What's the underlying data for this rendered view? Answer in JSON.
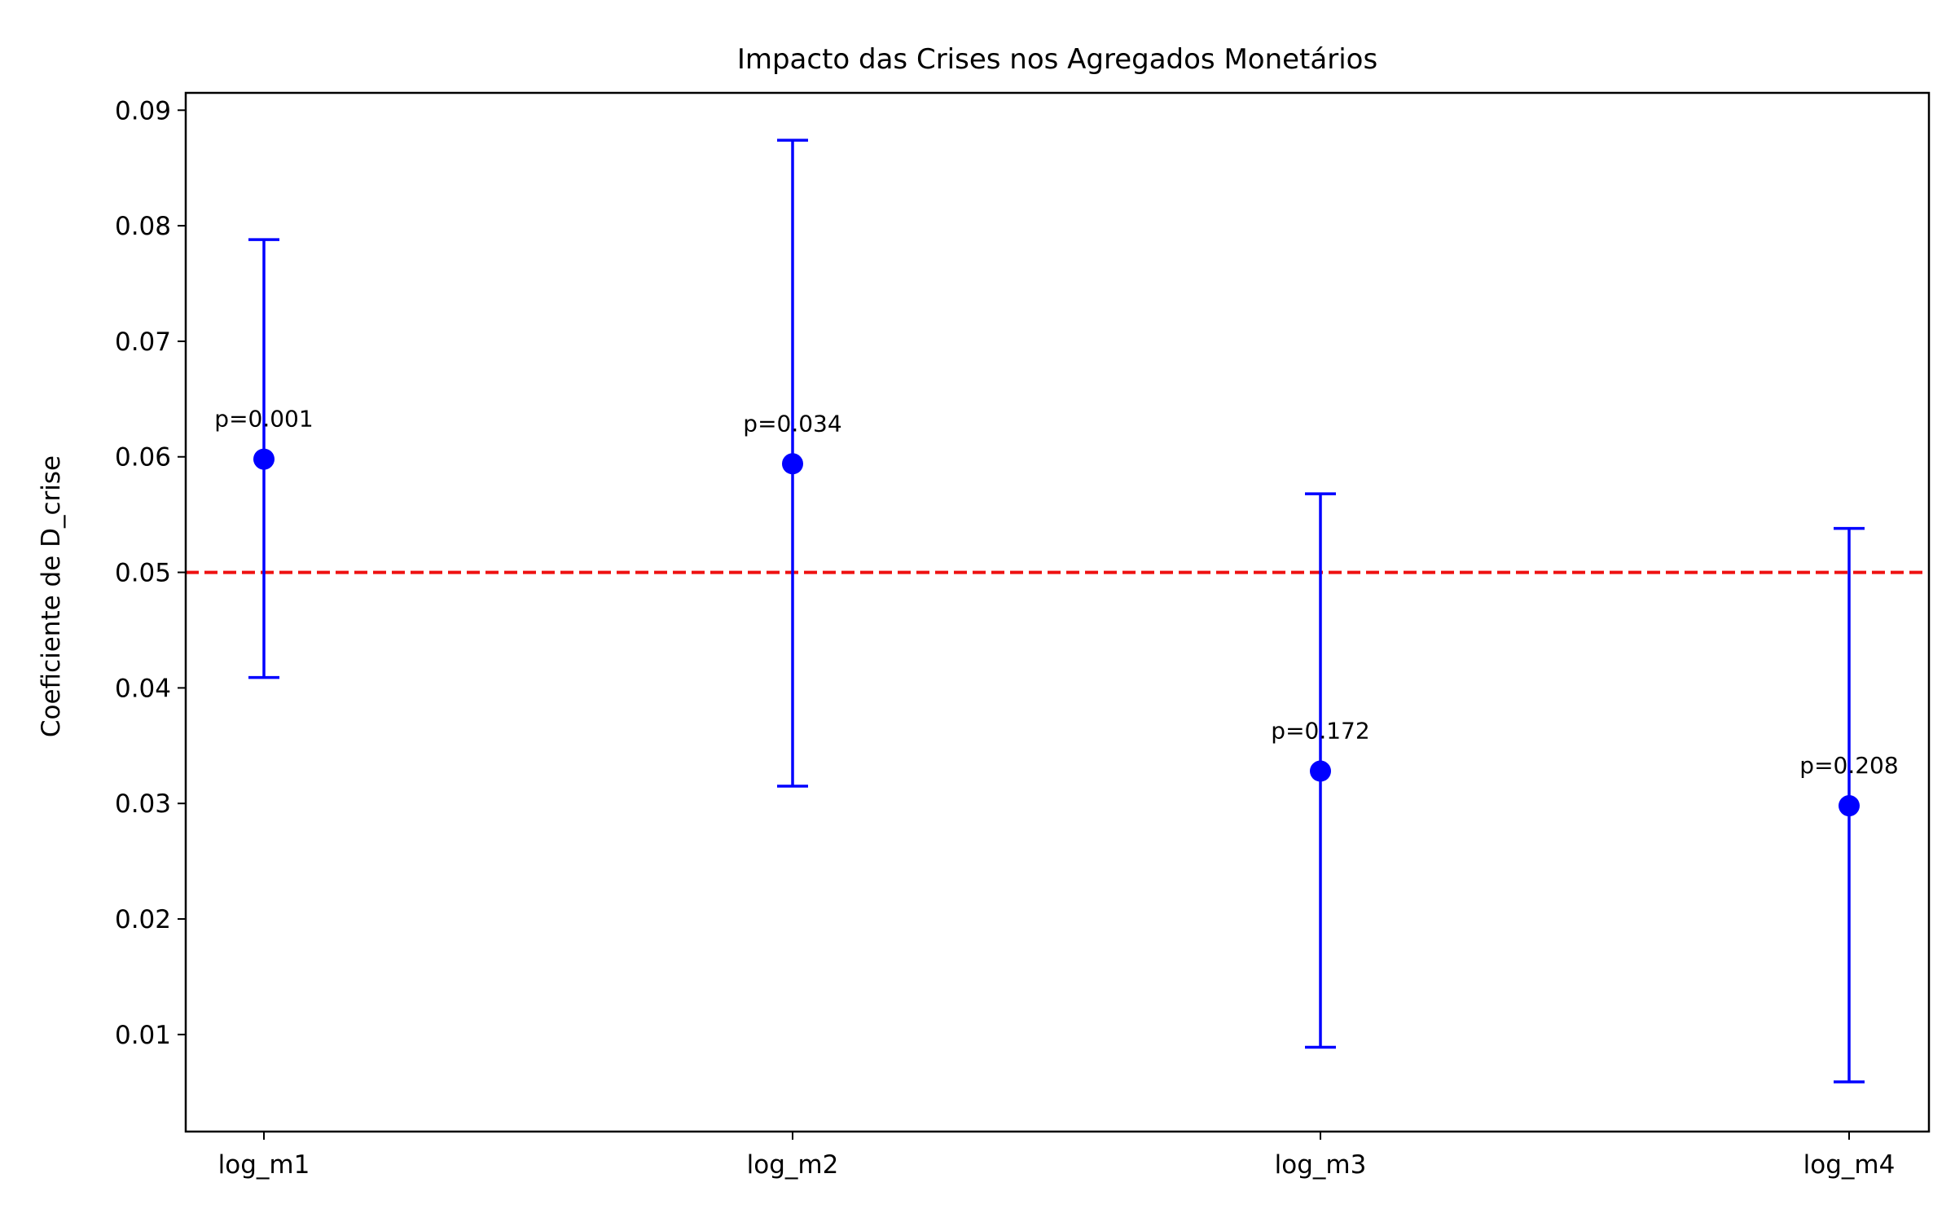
{
  "chart_data": {
    "type": "scatter",
    "title": "Impacto das Crises nos Agregados Monetários",
    "xlabel": "",
    "ylabel": "Coeficiente de D_crise",
    "categories": [
      "log_m1",
      "log_m2",
      "log_m3",
      "log_m4"
    ],
    "points": [
      {
        "category": "log_m1",
        "estimate": 0.0598,
        "ci_low": 0.0409,
        "ci_high": 0.0788,
        "label": "p=0.001"
      },
      {
        "category": "log_m2",
        "estimate": 0.0594,
        "ci_low": 0.0315,
        "ci_high": 0.0874,
        "label": "p=0.034"
      },
      {
        "category": "log_m3",
        "estimate": 0.0328,
        "ci_low": 0.0089,
        "ci_high": 0.0568,
        "label": "p=0.172"
      },
      {
        "category": "log_m4",
        "estimate": 0.0298,
        "ci_low": 0.0059,
        "ci_high": 0.0538,
        "label": "p=0.208"
      }
    ],
    "reference_line": {
      "y": 0.05,
      "color": "#ee1111",
      "style": "dashed"
    },
    "yticks": [
      "0.01",
      "0.02",
      "0.03",
      "0.04",
      "0.05",
      "0.06",
      "0.07",
      "0.08",
      "0.09"
    ],
    "ylim": [
      0.0016,
      0.0915
    ],
    "grid": false,
    "colors": {
      "points": "#0000ff",
      "reference": "#ee1111",
      "axes": "#000000"
    }
  }
}
